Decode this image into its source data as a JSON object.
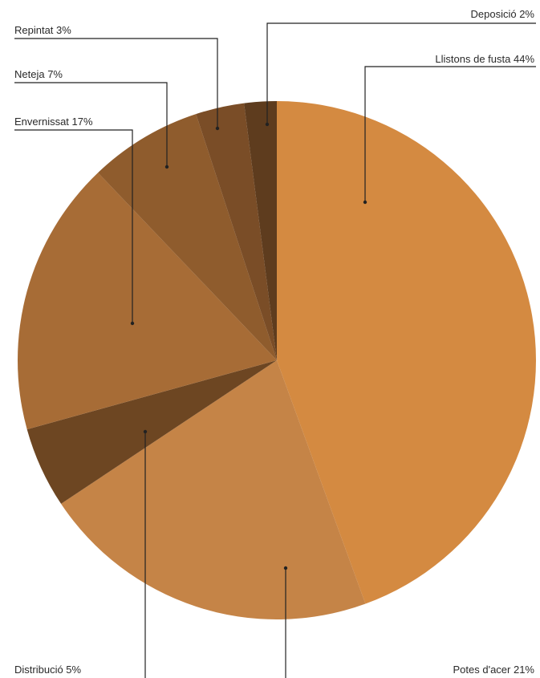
{
  "chart_data": {
    "type": "pie",
    "title": "",
    "start_angle_deg": 0,
    "direction": "clockwise",
    "legend": "none",
    "slices": [
      {
        "label": "Llistons de fusta 44%",
        "value": 44,
        "color": "#d48a41"
      },
      {
        "label": "Potes d'acer 21%",
        "value": 21,
        "color": "#c58447"
      },
      {
        "label": "Distribució 5%",
        "value": 5,
        "color": "#6d4622"
      },
      {
        "label": "Envernissat 17%",
        "value": 17,
        "color": "#a76c36"
      },
      {
        "label": "Neteja 7%",
        "value": 7,
        "color": "#8f5c2d"
      },
      {
        "label": "Repintat 3%",
        "value": 3,
        "color": "#7a4d27"
      },
      {
        "label": "Deposició 2%",
        "value": 2,
        "color": "#5e3c1e"
      }
    ]
  }
}
